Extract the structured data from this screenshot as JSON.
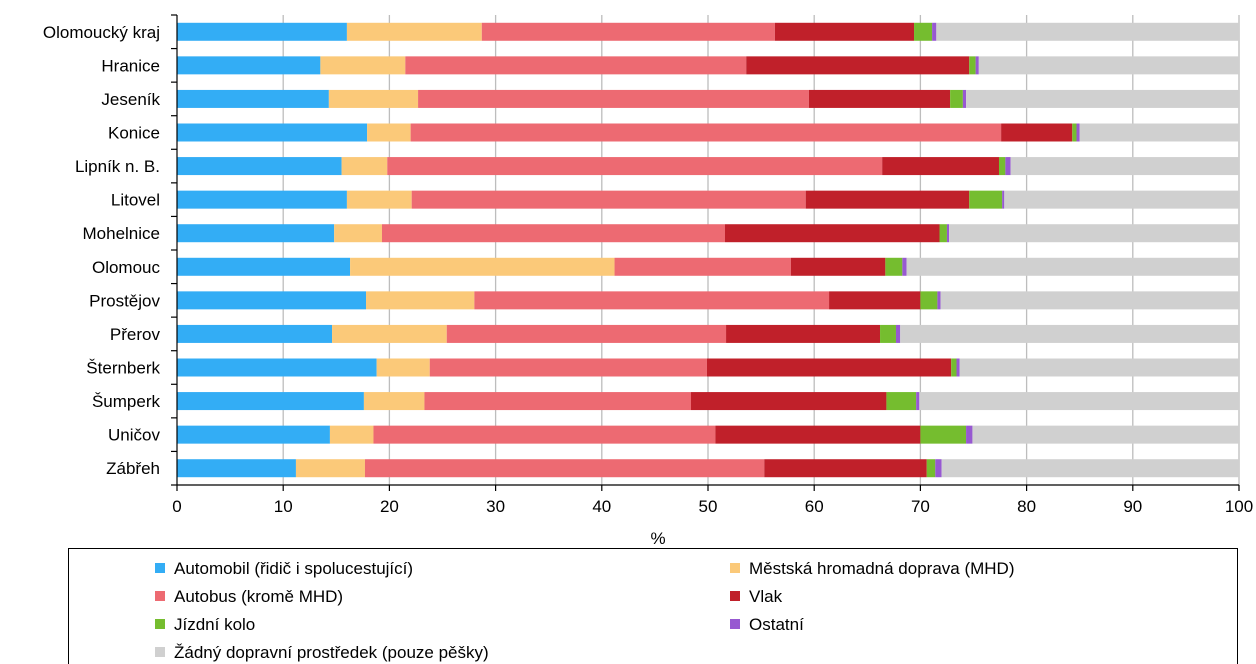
{
  "chart_data": {
    "type": "bar",
    "orientation": "horizontal",
    "stacked": true,
    "categories": [
      "Olomoucký kraj",
      "Hranice",
      "Jeseník",
      "Konice",
      "Lipník n. B.",
      "Litovel",
      "Mohelnice",
      "Olomouc",
      "Prostějov",
      "Přerov",
      "Šternberk",
      "Šumperk",
      "Uničov",
      "Zábřeh"
    ],
    "xlabel": "%",
    "xlim": [
      0,
      100
    ],
    "xticks": [
      0,
      10,
      20,
      30,
      40,
      50,
      60,
      70,
      80,
      90,
      100
    ],
    "xtick_labels": [
      "0",
      "10",
      "20",
      "30",
      "40",
      "50",
      "60",
      "70",
      "80",
      "90",
      "100"
    ],
    "grid": true,
    "legend_position": "bottom",
    "series": [
      {
        "name": "Automobil (řidič i spolucestující)",
        "color": "#33adf5",
        "values": [
          16.0,
          13.5,
          14.3,
          17.9,
          15.5,
          16.0,
          14.8,
          16.3,
          17.8,
          14.6,
          18.8,
          17.6,
          14.4,
          11.2
        ]
      },
      {
        "name": "Městská hromadná doprava (MHD)",
        "color": "#fbc979",
        "values": [
          12.7,
          8.0,
          8.4,
          4.1,
          4.3,
          6.1,
          4.5,
          24.9,
          10.2,
          10.8,
          5.0,
          5.7,
          4.1,
          6.5
        ]
      },
      {
        "name": "Autobus (kromě MHD)",
        "color": "#ed6a72",
        "values": [
          27.6,
          32.1,
          36.8,
          55.6,
          46.6,
          37.1,
          32.3,
          16.6,
          33.4,
          26.3,
          26.1,
          25.1,
          32.2,
          37.6
        ]
      },
      {
        "name": "Vlak",
        "color": "#c0202a",
        "values": [
          13.1,
          21.0,
          13.3,
          6.7,
          11.0,
          15.4,
          20.2,
          8.9,
          8.6,
          14.5,
          23.0,
          18.4,
          19.3,
          15.3
        ]
      },
      {
        "name": "Jízdní kolo",
        "color": "#75bd2f",
        "values": [
          1.7,
          0.6,
          1.2,
          0.4,
          0.6,
          3.1,
          0.7,
          1.6,
          1.6,
          1.5,
          0.5,
          2.8,
          4.3,
          0.8
        ]
      },
      {
        "name": "Ostatní",
        "color": "#9759d1",
        "values": [
          0.4,
          0.3,
          0.3,
          0.3,
          0.5,
          0.2,
          0.2,
          0.4,
          0.3,
          0.4,
          0.3,
          0.3,
          0.6,
          0.6
        ]
      },
      {
        "name": "Žádný dopravní prostředek (pouze pěšky)",
        "color": "#d0d0d0",
        "values": [
          28.5,
          24.5,
          25.7,
          15.0,
          21.5,
          22.1,
          27.3,
          31.3,
          28.1,
          31.9,
          26.3,
          30.1,
          25.1,
          28.0
        ]
      }
    ]
  }
}
